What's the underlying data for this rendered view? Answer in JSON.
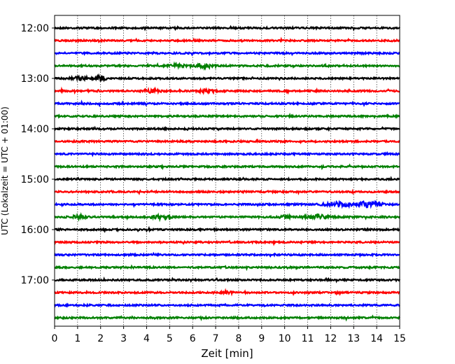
{
  "chart_data": {
    "type": "line",
    "title": "",
    "xlabel": "Zeit  [min]",
    "ylabel": "UTC (Lokalzeit = UTC + 01:00)",
    "xlim": [
      0,
      15
    ],
    "x_ticks": [
      0,
      1,
      2,
      3,
      4,
      5,
      6,
      7,
      8,
      9,
      10,
      11,
      12,
      13,
      14,
      15
    ],
    "y_ticks": [
      {
        "label": "12:00",
        "hour": 12.0
      },
      {
        "label": "13:00",
        "hour": 13.0
      },
      {
        "label": "14:00",
        "hour": 14.0
      },
      {
        "label": "15:00",
        "hour": 15.0
      },
      {
        "label": "16:00",
        "hour": 16.0
      },
      {
        "label": "17:00",
        "hour": 17.0
      }
    ],
    "grid_x": true,
    "trace_start_hour": 12.0,
    "trace_interval_min": 15,
    "trace_count": 24,
    "colors": [
      "#000000",
      "#ff0000",
      "#0000ff",
      "#008000"
    ],
    "events": [
      {
        "trace": 3,
        "x": 5.3,
        "w": 0.35,
        "amp": 2.2
      },
      {
        "trace": 3,
        "x": 6.5,
        "w": 0.4,
        "amp": 2.6
      },
      {
        "trace": 4,
        "x": 1.1,
        "w": 0.35,
        "amp": 2.0
      },
      {
        "trace": 4,
        "x": 2.0,
        "w": 0.2,
        "amp": 3.5
      },
      {
        "trace": 5,
        "x": 4.2,
        "w": 0.4,
        "amp": 2.0
      },
      {
        "trace": 5,
        "x": 6.6,
        "w": 0.3,
        "amp": 1.8
      },
      {
        "trace": 14,
        "x": 12.3,
        "w": 0.6,
        "amp": 3.0
      },
      {
        "trace": 14,
        "x": 13.5,
        "w": 0.3,
        "amp": 3.5
      },
      {
        "trace": 14,
        "x": 14.0,
        "w": 0.3,
        "amp": 2.0
      },
      {
        "trace": 15,
        "x": 1.0,
        "w": 0.35,
        "amp": 2.2
      },
      {
        "trace": 15,
        "x": 4.6,
        "w": 0.45,
        "amp": 2.5
      },
      {
        "trace": 15,
        "x": 10.0,
        "w": 0.25,
        "amp": 2.2
      },
      {
        "trace": 15,
        "x": 11.5,
        "w": 0.55,
        "amp": 2.8
      },
      {
        "trace": 21,
        "x": 7.5,
        "w": 0.2,
        "amp": 1.8
      }
    ]
  }
}
